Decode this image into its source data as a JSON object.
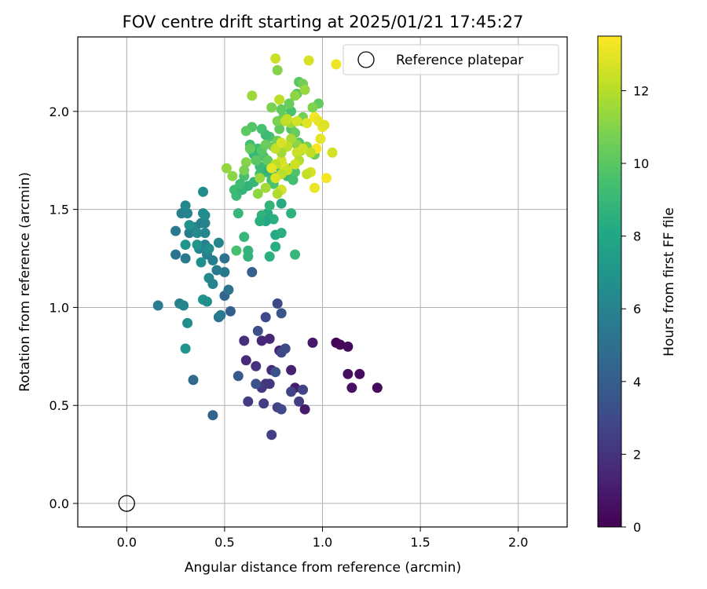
{
  "chart_data": {
    "type": "scatter",
    "title": "FOV centre drift starting at 2025/01/21 17:45:27",
    "xlabel": "Angular distance from reference (arcmin)",
    "ylabel": "Rotation from reference (arcmin)",
    "colorbar_label": "Hours from first FF file",
    "xlim": [
      -0.25,
      2.25
    ],
    "ylim": [
      -0.12,
      2.38
    ],
    "xticks": [
      0.0,
      0.5,
      1.0,
      1.5,
      2.0
    ],
    "yticks": [
      0.0,
      0.5,
      1.0,
      1.5,
      2.0
    ],
    "xtick_labels": [
      "0.0",
      "0.5",
      "1.0",
      "1.5",
      "2.0"
    ],
    "ytick_labels": [
      "0.0",
      "0.5",
      "1.0",
      "1.5",
      "2.0"
    ],
    "colorbar_range": [
      0,
      13.5
    ],
    "colorbar_ticks": [
      0,
      2,
      4,
      6,
      8,
      10,
      12
    ],
    "colorbar_tick_labels": [
      "0",
      "2",
      "4",
      "6",
      "8",
      "10",
      "12"
    ],
    "colormap": "viridis",
    "grid": true,
    "legend_position": "top-right",
    "reference": {
      "label": "Reference platepar",
      "x": 0.0,
      "y": 0.0,
      "marker": "open-circle",
      "color": "#000000"
    },
    "points": [
      [
        1.07,
        0.82,
        0.1
      ],
      [
        1.09,
        0.81,
        0.2
      ],
      [
        1.13,
        0.8,
        0.3
      ],
      [
        1.13,
        0.66,
        0.5
      ],
      [
        1.19,
        0.66,
        0.4
      ],
      [
        1.15,
        0.59,
        0.6
      ],
      [
        1.28,
        0.59,
        0.3
      ],
      [
        0.91,
        0.48,
        1.0
      ],
      [
        0.95,
        0.82,
        0.9
      ],
      [
        0.86,
        0.59,
        1.1
      ],
      [
        0.84,
        0.68,
        1.2
      ],
      [
        0.78,
        0.78,
        1.3
      ],
      [
        0.73,
        0.84,
        1.5
      ],
      [
        0.69,
        0.83,
        1.5
      ],
      [
        0.74,
        0.68,
        1.6
      ],
      [
        0.6,
        0.83,
        1.8
      ],
      [
        0.61,
        0.73,
        1.6
      ],
      [
        0.66,
        0.7,
        1.9
      ],
      [
        0.71,
        0.61,
        2.0
      ],
      [
        0.73,
        0.61,
        2.1
      ],
      [
        0.69,
        0.59,
        2.2
      ],
      [
        0.62,
        0.52,
        2.3
      ],
      [
        0.7,
        0.51,
        2.4
      ],
      [
        0.74,
        0.35,
        2.5
      ],
      [
        0.77,
        0.49,
        2.6
      ],
      [
        0.79,
        0.48,
        2.9
      ],
      [
        0.84,
        0.57,
        2.6
      ],
      [
        0.88,
        0.52,
        2.4
      ],
      [
        0.9,
        0.58,
        2.7
      ],
      [
        0.79,
        0.77,
        2.8
      ],
      [
        0.81,
        0.79,
        3.1
      ],
      [
        0.71,
        0.95,
        2.9
      ],
      [
        0.67,
        0.88,
        3.2
      ],
      [
        0.77,
        1.02,
        3.0
      ],
      [
        0.76,
        0.67,
        3.5
      ],
      [
        0.66,
        0.61,
        3.4
      ],
      [
        0.57,
        0.65,
        3.8
      ],
      [
        0.79,
        0.97,
        3.6
      ],
      [
        0.53,
        0.98,
        4.0
      ],
      [
        0.44,
        0.45,
        4.3
      ],
      [
        0.34,
        0.63,
        4.6
      ],
      [
        0.47,
        0.95,
        5.0
      ],
      [
        0.48,
        0.96,
        5.5
      ],
      [
        0.5,
        1.06,
        4.5
      ],
      [
        0.52,
        1.09,
        5.2
      ],
      [
        0.64,
        1.18,
        4.1
      ],
      [
        0.5,
        1.18,
        5.4
      ],
      [
        0.46,
        1.19,
        5.6
      ],
      [
        0.44,
        1.24,
        5.8
      ],
      [
        0.5,
        1.25,
        5.0
      ],
      [
        0.42,
        1.15,
        6.3
      ],
      [
        0.44,
        1.12,
        6.0
      ],
      [
        0.41,
        1.27,
        5.9
      ],
      [
        0.4,
        1.32,
        5.7
      ],
      [
        0.37,
        1.3,
        6.1
      ],
      [
        0.3,
        1.25,
        5.5
      ],
      [
        0.25,
        1.27,
        5.2
      ],
      [
        0.32,
        1.38,
        5.8
      ],
      [
        0.35,
        1.41,
        6.1
      ],
      [
        0.38,
        1.43,
        5.9
      ],
      [
        0.4,
        1.43,
        6.0
      ],
      [
        0.4,
        1.38,
        6.2
      ],
      [
        0.36,
        1.38,
        6.4
      ],
      [
        0.42,
        1.3,
        6.6
      ],
      [
        0.38,
        1.23,
        6.7
      ],
      [
        0.47,
        1.33,
        6.1
      ],
      [
        0.25,
        1.39,
        5.4
      ],
      [
        0.28,
        1.48,
        5.8
      ],
      [
        0.31,
        1.48,
        6.0
      ],
      [
        0.3,
        1.52,
        6.2
      ],
      [
        0.39,
        1.48,
        6.3
      ],
      [
        0.4,
        1.47,
        6.5
      ],
      [
        0.39,
        1.59,
        6.6
      ],
      [
        0.32,
        1.42,
        6.8
      ],
      [
        0.36,
        1.32,
        7.0
      ],
      [
        0.3,
        1.32,
        6.9
      ],
      [
        0.27,
        1.02,
        5.9
      ],
      [
        0.29,
        1.01,
        6.1
      ],
      [
        0.16,
        1.01,
        5.6
      ],
      [
        0.31,
        0.92,
        6.6
      ],
      [
        0.3,
        0.79,
        7.0
      ],
      [
        0.39,
        1.04,
        6.8
      ],
      [
        0.41,
        1.03,
        6.7
      ],
      [
        0.6,
        1.36,
        8.9
      ],
      [
        0.62,
        1.29,
        8.8
      ],
      [
        0.62,
        1.26,
        8.7
      ],
      [
        0.73,
        1.26,
        8.5
      ],
      [
        0.76,
        1.31,
        8.4
      ],
      [
        0.76,
        1.37,
        8.2
      ],
      [
        0.79,
        1.38,
        8.4
      ],
      [
        0.86,
        1.27,
        8.9
      ],
      [
        0.84,
        1.48,
        8.6
      ],
      [
        0.79,
        1.53,
        8.2
      ],
      [
        0.72,
        1.48,
        8.3
      ],
      [
        0.75,
        1.45,
        8.5
      ],
      [
        0.69,
        1.47,
        8.7
      ],
      [
        0.71,
        1.44,
        8.1
      ],
      [
        0.68,
        1.44,
        8.5
      ],
      [
        0.73,
        1.52,
        8.8
      ],
      [
        0.57,
        1.48,
        8.9
      ],
      [
        0.56,
        1.29,
        9.5
      ],
      [
        0.55,
        1.6,
        9.3
      ],
      [
        0.56,
        1.57,
        9.1
      ],
      [
        0.59,
        1.6,
        8.8
      ],
      [
        0.62,
        1.62,
        8.7
      ],
      [
        0.6,
        1.67,
        9.5
      ],
      [
        0.58,
        1.63,
        9.2
      ],
      [
        0.65,
        1.64,
        8.9
      ],
      [
        0.68,
        1.68,
        9.3
      ],
      [
        0.71,
        1.69,
        9.0
      ],
      [
        0.72,
        1.71,
        8.6
      ],
      [
        0.74,
        1.68,
        8.8
      ],
      [
        0.74,
        1.65,
        9.4
      ],
      [
        0.75,
        1.63,
        9.6
      ],
      [
        0.79,
        1.6,
        9.8
      ],
      [
        0.82,
        1.67,
        9.1
      ],
      [
        0.85,
        1.65,
        9.4
      ],
      [
        0.84,
        1.71,
        8.9
      ],
      [
        0.86,
        1.69,
        9.7
      ],
      [
        0.79,
        1.7,
        8.8
      ],
      [
        0.73,
        1.73,
        9.2
      ],
      [
        0.7,
        1.77,
        9.6
      ],
      [
        0.67,
        1.81,
        9.3
      ],
      [
        0.64,
        1.8,
        9.0
      ],
      [
        0.66,
        1.77,
        9.8
      ],
      [
        0.63,
        1.83,
        9.4
      ],
      [
        0.65,
        1.78,
        8.9
      ],
      [
        0.68,
        1.72,
        9.1
      ],
      [
        0.72,
        1.75,
        10.2
      ],
      [
        0.75,
        1.82,
        10.0
      ],
      [
        0.73,
        1.87,
        9.6
      ],
      [
        0.71,
        1.88,
        9.1
      ],
      [
        0.69,
        1.91,
        9.5
      ],
      [
        0.64,
        1.92,
        9.8
      ],
      [
        0.61,
        1.9,
        10.1
      ],
      [
        0.63,
        1.81,
        10.3
      ],
      [
        0.66,
        1.75,
        10.0
      ],
      [
        0.69,
        1.8,
        9.9
      ],
      [
        0.71,
        1.83,
        10.4
      ],
      [
        0.77,
        1.85,
        10.6
      ],
      [
        0.78,
        1.91,
        10.2
      ],
      [
        0.77,
        1.95,
        10.8
      ],
      [
        0.8,
        1.97,
        10.5
      ],
      [
        0.84,
        1.91,
        9.9
      ],
      [
        0.86,
        1.89,
        10.3
      ],
      [
        0.88,
        1.84,
        9.8
      ],
      [
        0.9,
        1.95,
        10.1
      ],
      [
        0.9,
        1.97,
        10.7
      ],
      [
        0.84,
        2.0,
        9.6
      ],
      [
        0.87,
        2.09,
        10.0
      ],
      [
        0.83,
        2.04,
        10.4
      ],
      [
        0.79,
        2.01,
        10.2
      ],
      [
        0.74,
        2.02,
        10.8
      ],
      [
        0.77,
        2.21,
        11.0
      ],
      [
        0.86,
        2.08,
        11.2
      ],
      [
        0.88,
        2.15,
        10.0
      ],
      [
        0.9,
        2.14,
        10.6
      ],
      [
        0.91,
        2.11,
        11.4
      ],
      [
        0.98,
        2.04,
        10.2
      ],
      [
        0.95,
        2.02,
        10.9
      ],
      [
        0.96,
        1.97,
        11.3
      ],
      [
        0.96,
        1.78,
        10.5
      ],
      [
        0.92,
        1.82,
        10.8
      ],
      [
        0.89,
        1.8,
        11.6
      ],
      [
        0.87,
        1.83,
        11.1
      ],
      [
        0.84,
        1.94,
        11.5
      ],
      [
        0.81,
        1.95,
        12.0
      ],
      [
        0.84,
        1.86,
        11.7
      ],
      [
        0.82,
        1.82,
        12.2
      ],
      [
        0.87,
        1.79,
        12.4
      ],
      [
        0.88,
        1.75,
        12.0
      ],
      [
        0.86,
        1.73,
        12.5
      ],
      [
        0.8,
        1.72,
        11.8
      ],
      [
        0.79,
        1.75,
        12.6
      ],
      [
        0.76,
        1.73,
        12.1
      ],
      [
        0.79,
        1.79,
        11.6
      ],
      [
        0.76,
        1.81,
        12.3
      ],
      [
        0.79,
        1.84,
        12.7
      ],
      [
        0.81,
        1.71,
        12.9
      ],
      [
        0.82,
        1.7,
        12.4
      ],
      [
        0.79,
        1.68,
        12.1
      ],
      [
        0.76,
        1.66,
        12.8
      ],
      [
        0.74,
        1.71,
        13.0
      ],
      [
        0.79,
        1.6,
        12.6
      ],
      [
        0.77,
        1.58,
        11.9
      ],
      [
        0.71,
        1.61,
        11.6
      ],
      [
        0.68,
        1.66,
        11.4
      ],
      [
        0.67,
        1.58,
        11.2
      ],
      [
        0.61,
        1.74,
        11.0
      ],
      [
        0.6,
        1.7,
        10.8
      ],
      [
        0.54,
        1.67,
        11.1
      ],
      [
        0.51,
        1.71,
        11.3
      ],
      [
        0.64,
        2.08,
        11.5
      ],
      [
        0.76,
        2.27,
        12.4
      ],
      [
        0.93,
        2.26,
        12.7
      ],
      [
        1.07,
        2.24,
        13.2
      ],
      [
        0.78,
        2.06,
        12.1
      ],
      [
        0.82,
        1.96,
        12.3
      ],
      [
        0.87,
        1.95,
        12.6
      ],
      [
        0.92,
        1.94,
        12.9
      ],
      [
        0.96,
        1.97,
        13.3
      ],
      [
        0.98,
        1.95,
        13.0
      ],
      [
        1.0,
        1.92,
        13.1
      ],
      [
        1.01,
        1.93,
        12.8
      ],
      [
        0.99,
        1.86,
        13.0
      ],
      [
        0.97,
        1.81,
        13.4
      ],
      [
        0.94,
        1.69,
        12.7
      ],
      [
        0.92,
        1.68,
        12.3
      ],
      [
        0.96,
        1.61,
        13.1
      ],
      [
        1.02,
        1.66,
        13.3
      ],
      [
        1.05,
        1.79,
        12.6
      ],
      [
        0.94,
        1.79,
        12.2
      ],
      [
        0.9,
        1.81,
        12.5
      ]
    ]
  }
}
